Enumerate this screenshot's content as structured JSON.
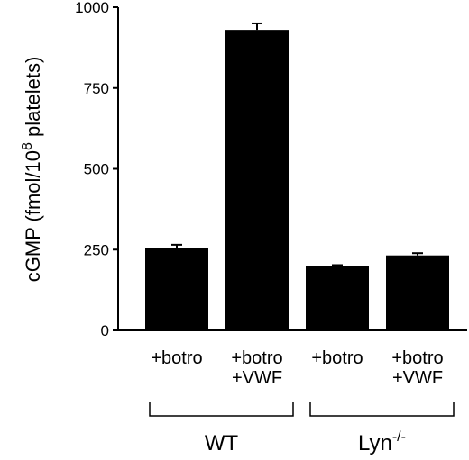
{
  "chart_data": {
    "type": "bar",
    "title": "",
    "xlabel": "",
    "ylabel": {
      "prefix": "cGMP (fmol/10",
      "superscript": "8",
      "suffix": " platelets)"
    },
    "ylim": [
      0,
      1000
    ],
    "yticks": [
      0,
      250,
      500,
      750,
      1000
    ],
    "categories": [
      {
        "lines": [
          "+botro"
        ]
      },
      {
        "lines": [
          "+botro",
          "+VWF"
        ]
      },
      {
        "lines": [
          "+botro"
        ]
      },
      {
        "lines": [
          "+botro",
          "+VWF"
        ]
      }
    ],
    "values": [
      255,
      930,
      198,
      232
    ],
    "errors": [
      10,
      20,
      4,
      7
    ],
    "bar_color": "#000000",
    "groups": [
      {
        "label": "WT",
        "superscript": "",
        "categories": [
          0,
          1
        ]
      },
      {
        "label": "Lyn",
        "superscript": "-/-",
        "categories": [
          2,
          3
        ]
      }
    ]
  }
}
